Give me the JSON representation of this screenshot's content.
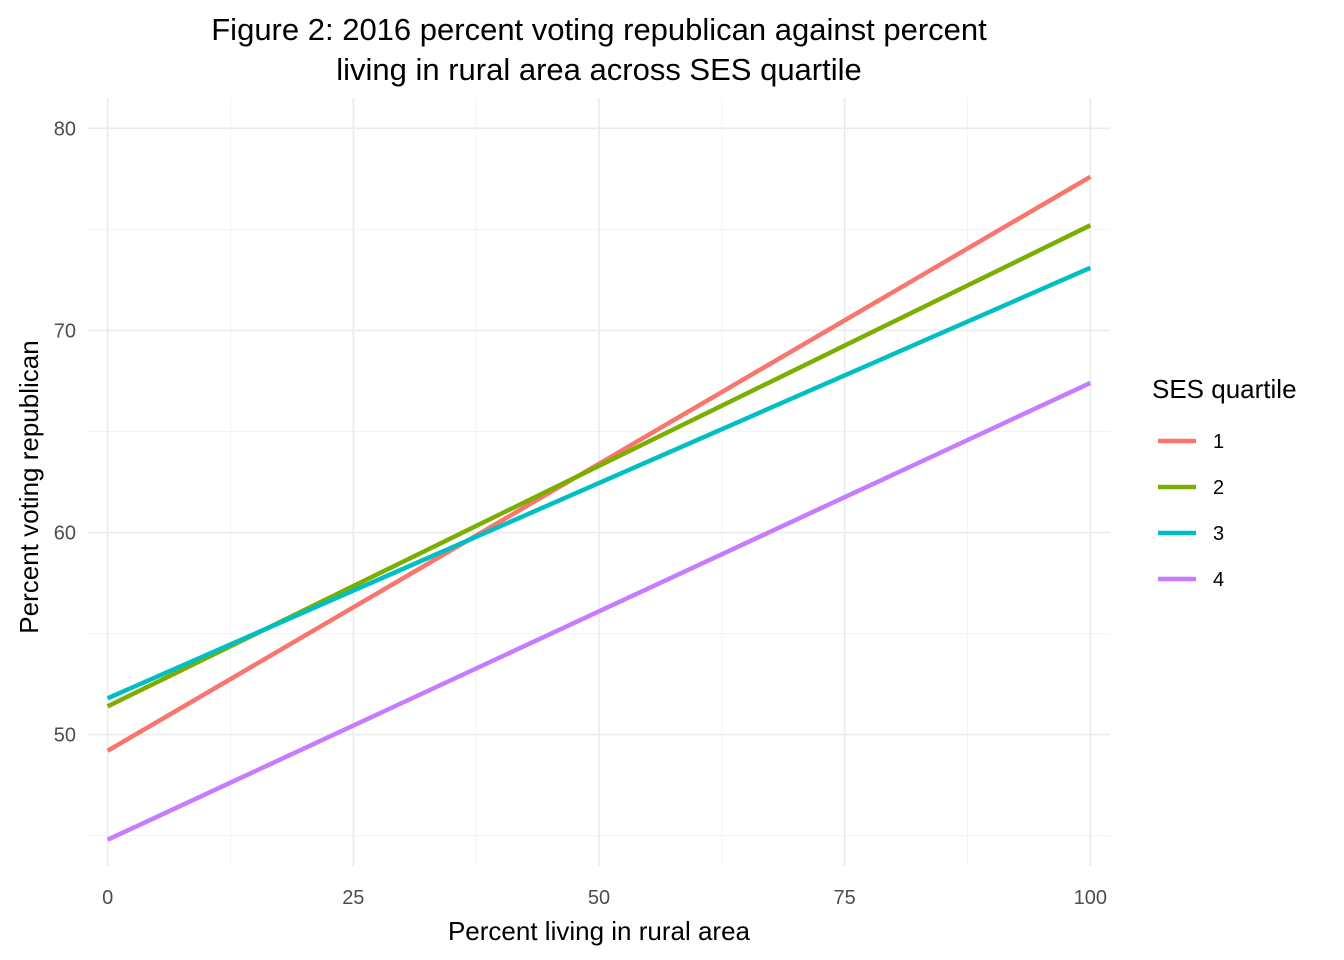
{
  "chart_data": {
    "type": "line",
    "title_lines": [
      "Figure 2: 2016 percent voting republican against percent",
      "living in rural area across SES quartile"
    ],
    "xlabel": "Percent living in rural area",
    "ylabel": "Percent voting republican",
    "xlim": [
      -2,
      102
    ],
    "ylim": [
      43.5,
      81.5
    ],
    "x_ticks": [
      0,
      25,
      50,
      75,
      100
    ],
    "x_tick_labels": [
      "0",
      "25",
      "50",
      "75",
      "100"
    ],
    "y_ticks": [
      50,
      60,
      70,
      80
    ],
    "y_tick_labels": [
      "50",
      "60",
      "70",
      "80"
    ],
    "x_minor": [
      12.5,
      37.5,
      62.5,
      87.5
    ],
    "y_minor": [
      45,
      55,
      65,
      75
    ],
    "grid": true,
    "legend": {
      "title": "SES quartile",
      "placement": "right"
    },
    "series": [
      {
        "name": "1",
        "color": "#F8766D",
        "x": [
          0,
          100
        ],
        "y": [
          49.2,
          77.6
        ]
      },
      {
        "name": "2",
        "color": "#7CAE00",
        "x": [
          0,
          100
        ],
        "y": [
          51.4,
          75.2
        ]
      },
      {
        "name": "3",
        "color": "#00BFC4",
        "x": [
          0,
          100
        ],
        "y": [
          51.8,
          73.1
        ]
      },
      {
        "name": "4",
        "color": "#C77CFF",
        "x": [
          0,
          100
        ],
        "y": [
          44.8,
          67.4
        ]
      }
    ]
  }
}
